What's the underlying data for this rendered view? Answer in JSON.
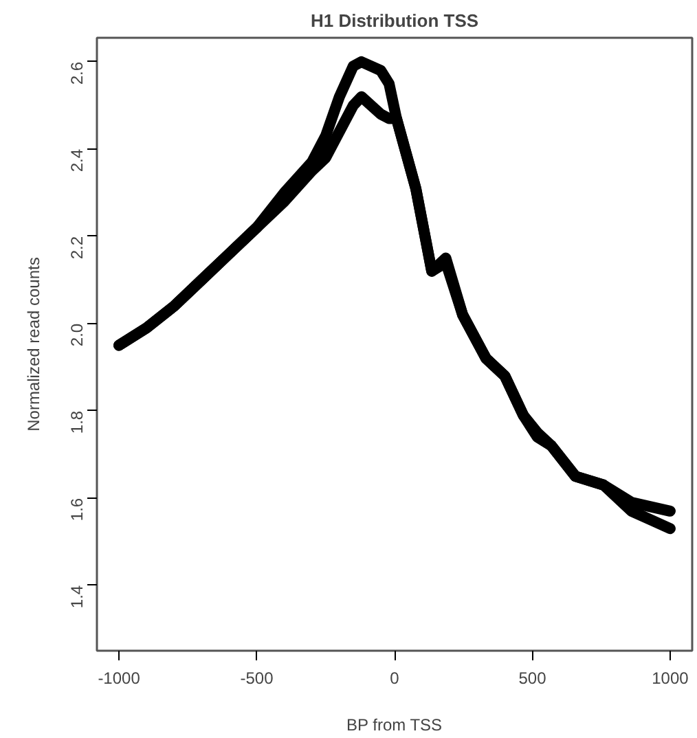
{
  "chart_data": {
    "type": "line",
    "title": "H1 Distribution TSS",
    "xlabel": "BP from TSS",
    "ylabel": "Normalized read counts",
    "xlim": [
      -1080,
      1080
    ],
    "ylim": [
      1.25,
      2.655
    ],
    "xticks": [
      -1000,
      -500,
      0,
      500,
      1000
    ],
    "yticks": [
      1.4,
      1.6,
      1.8,
      {
        "value": 2,
        "label": "2.0"
      },
      2.2,
      2.4,
      2.6
    ],
    "grid": false,
    "line_style": "solid",
    "series": [
      {
        "color": "#000000",
        "x": [
          -1000,
          -900,
          -800,
          -700,
          -600,
          -500,
          -400,
          -300,
          -250,
          -200,
          -150,
          -120,
          -50,
          -20,
          7,
          77,
          135,
          186,
          247,
          332,
          400,
          467,
          518,
          569,
          656,
          758,
          860,
          1000
        ],
        "values": [
          1.95,
          1.99,
          2.04,
          2.1,
          2.16,
          2.22,
          2.3,
          2.37,
          2.43,
          2.52,
          2.59,
          2.6,
          2.58,
          2.55,
          2.47,
          2.31,
          2.12,
          2.15,
          2.02,
          1.92,
          1.88,
          1.79,
          1.74,
          1.72,
          1.65,
          1.63,
          1.59,
          1.57
        ]
      },
      {
        "color": "#000000",
        "x": [
          -1000,
          -900,
          -800,
          -700,
          -600,
          -500,
          -400,
          -300,
          -250,
          -200,
          -150,
          -120,
          -50,
          -20,
          7,
          77,
          135,
          186,
          247,
          332,
          400,
          467,
          518,
          569,
          656,
          758,
          860,
          1000
        ],
        "values": [
          1.95,
          1.99,
          2.04,
          2.1,
          2.16,
          2.22,
          2.28,
          2.35,
          2.38,
          2.44,
          2.5,
          2.52,
          2.48,
          2.47,
          2.47,
          2.31,
          2.12,
          2.14,
          2.02,
          1.92,
          1.88,
          1.79,
          1.75,
          1.72,
          1.65,
          1.63,
          1.57,
          1.53
        ]
      }
    ]
  }
}
